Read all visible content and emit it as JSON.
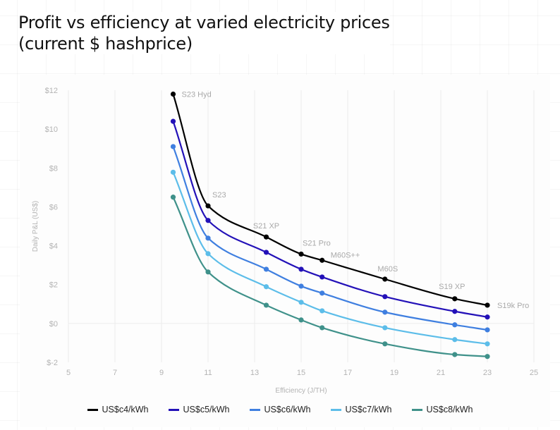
{
  "title_lines": [
    "Profit vs efficiency at varied electricity prices",
    "(current $ hashprice)"
  ],
  "chart_data": {
    "type": "line",
    "title": "Profit vs efficiency at varied electricity prices (current $ hashprice)",
    "xlabel": "Efficiency (J/TH)",
    "ylabel": "Daily P&L (US$)",
    "xlim": [
      5,
      25
    ],
    "ylim": [
      -2,
      12
    ],
    "x_ticks": [
      5,
      7,
      9,
      11,
      13,
      15,
      17,
      19,
      21,
      23,
      25
    ],
    "y_ticks": [
      12,
      10,
      8,
      6,
      4,
      2,
      0,
      -2
    ],
    "y_tick_labels": [
      "$12",
      "$10",
      "$8",
      "$6",
      "$4",
      "$2",
      "$0",
      "$-2"
    ],
    "grid": true,
    "legend_position": "bottom",
    "x": [
      9.5,
      11,
      13.5,
      15,
      15.9,
      18.6,
      21.6,
      23
    ],
    "point_labels": [
      "S23 Hyd",
      "S23",
      "S21 XP",
      "S21 Pro",
      "M60S++",
      "M60S",
      "S19 XP",
      "S19k Pro"
    ],
    "series": [
      {
        "name": "US$c4/kWh",
        "color": "#000000",
        "values": [
          11.8,
          6.05,
          4.45,
          3.57,
          3.25,
          2.28,
          1.27,
          0.94
        ]
      },
      {
        "name": "US$c5/kWh",
        "color": "#2311b8",
        "values": [
          10.4,
          5.3,
          3.66,
          2.79,
          2.39,
          1.38,
          0.62,
          0.33
        ]
      },
      {
        "name": "US$c6/kWh",
        "color": "#3f7fe0",
        "values": [
          9.1,
          4.39,
          2.79,
          1.92,
          1.56,
          0.58,
          -0.07,
          -0.33
        ]
      },
      {
        "name": "US$c7/kWh",
        "color": "#5cbde9",
        "values": [
          7.78,
          3.59,
          1.89,
          1.09,
          0.65,
          -0.22,
          -0.83,
          -1.05
        ]
      },
      {
        "name": "US$c8/kWh",
        "color": "#3f918a",
        "values": [
          6.5,
          2.65,
          0.94,
          0.18,
          -0.22,
          -1.05,
          -1.6,
          -1.7
        ]
      }
    ]
  }
}
